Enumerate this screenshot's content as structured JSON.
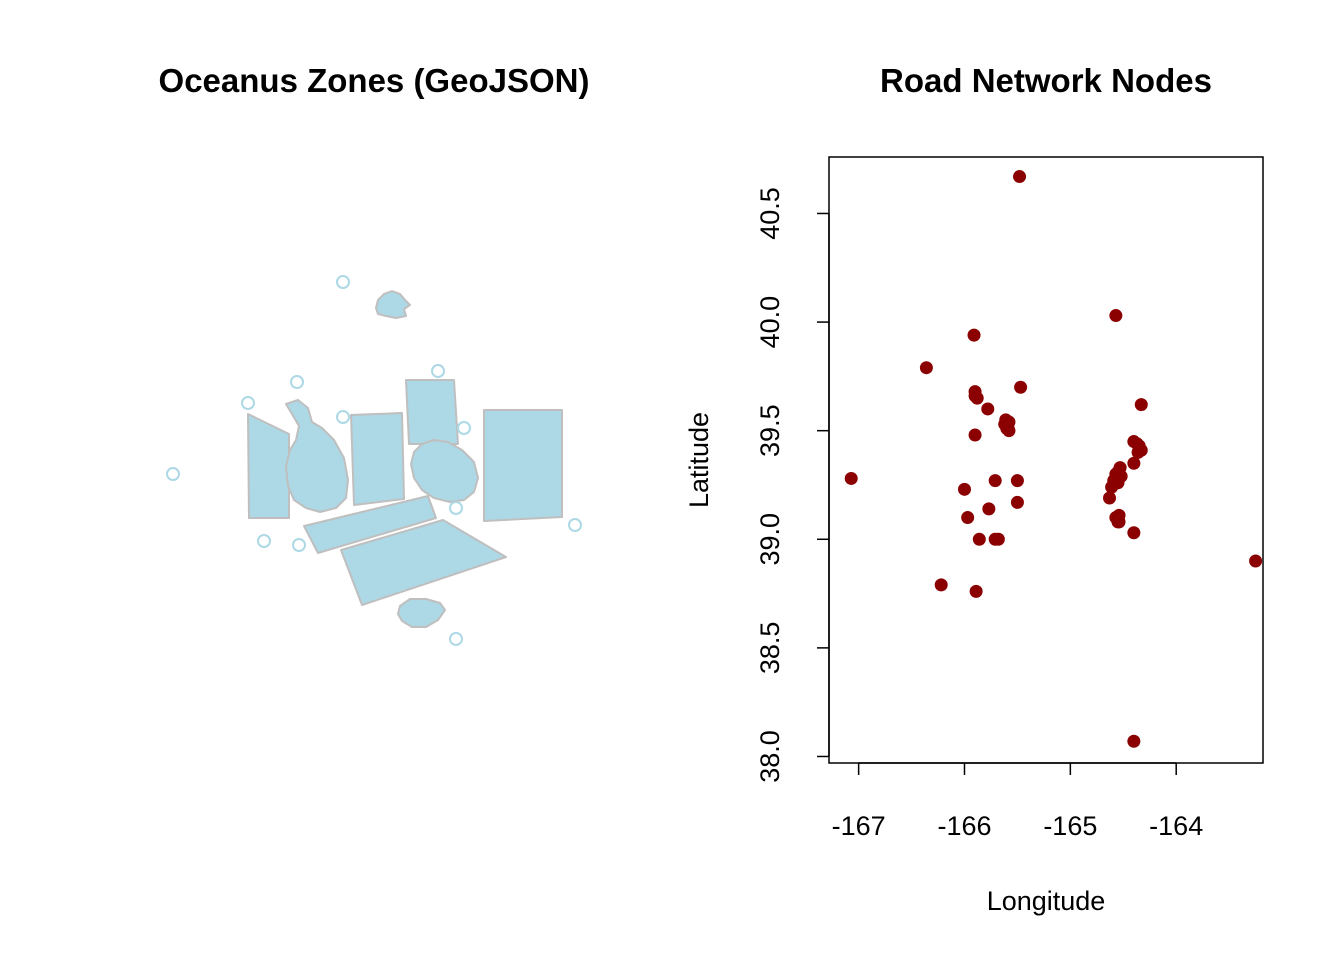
{
  "chart_data": [
    {
      "type": "map",
      "title": "Oceanus Zones (GeoJSON)",
      "fill_color": "#add8e6",
      "border_color": "#bfbfbf",
      "point_marker": "open-circle",
      "axes": false
    },
    {
      "type": "scatter",
      "title": "Road Network Nodes",
      "xlabel": "Longitude",
      "ylabel": "Latitude",
      "xlim": [
        -167.28,
        -163.18
      ],
      "ylim": [
        37.97,
        40.76
      ],
      "xticks": [
        -167,
        -166,
        -165,
        -164
      ],
      "xtick_labels": [
        "-167",
        "-166",
        "-165",
        "-164"
      ],
      "yticks": [
        38.0,
        38.5,
        39.0,
        39.5,
        40.0,
        40.5
      ],
      "ytick_labels": [
        "38.0",
        "38.5",
        "39.0",
        "39.5",
        "40.0",
        "40.5"
      ],
      "grid": false,
      "point_color": "#8b0000",
      "points": [
        [
          -165.48,
          40.67
        ],
        [
          -164.57,
          40.03
        ],
        [
          -165.91,
          39.94
        ],
        [
          -166.36,
          39.79
        ],
        [
          -165.47,
          39.7
        ],
        [
          -165.9,
          39.68
        ],
        [
          -165.9,
          39.66
        ],
        [
          -165.88,
          39.65
        ],
        [
          -164.33,
          39.62
        ],
        [
          -165.78,
          39.6
        ],
        [
          -165.61,
          39.55
        ],
        [
          -165.58,
          39.54
        ],
        [
          -165.62,
          39.53
        ],
        [
          -165.59,
          39.52
        ],
        [
          -165.6,
          39.51
        ],
        [
          -165.58,
          39.5
        ],
        [
          -165.9,
          39.48
        ],
        [
          -164.4,
          39.45
        ],
        [
          -164.37,
          39.44
        ],
        [
          -164.35,
          39.43
        ],
        [
          -164.33,
          39.41
        ],
        [
          -164.36,
          39.4
        ],
        [
          -164.4,
          39.35
        ],
        [
          -164.53,
          39.33
        ],
        [
          -164.55,
          39.31
        ],
        [
          -164.57,
          39.3
        ],
        [
          -164.52,
          39.29
        ],
        [
          -164.56,
          39.28
        ],
        [
          -164.59,
          39.27
        ],
        [
          -164.55,
          39.26
        ],
        [
          -165.5,
          39.27
        ],
        [
          -165.71,
          39.27
        ],
        [
          -164.61,
          39.24
        ],
        [
          -166.0,
          39.23
        ],
        [
          -164.63,
          39.19
        ],
        [
          -165.5,
          39.17
        ],
        [
          -165.77,
          39.14
        ],
        [
          -164.54,
          39.11
        ],
        [
          -164.57,
          39.1
        ],
        [
          -165.97,
          39.1
        ],
        [
          -164.55,
          39.08
        ],
        [
          -164.54,
          39.08
        ],
        [
          -164.4,
          39.03
        ],
        [
          -165.68,
          39.0
        ],
        [
          -165.71,
          39.0
        ],
        [
          -165.86,
          39.0
        ],
        [
          -163.25,
          38.9
        ],
        [
          -166.22,
          38.79
        ],
        [
          -165.89,
          38.76
        ],
        [
          -164.4,
          38.07
        ],
        [
          -167.07,
          39.28
        ]
      ]
    }
  ]
}
